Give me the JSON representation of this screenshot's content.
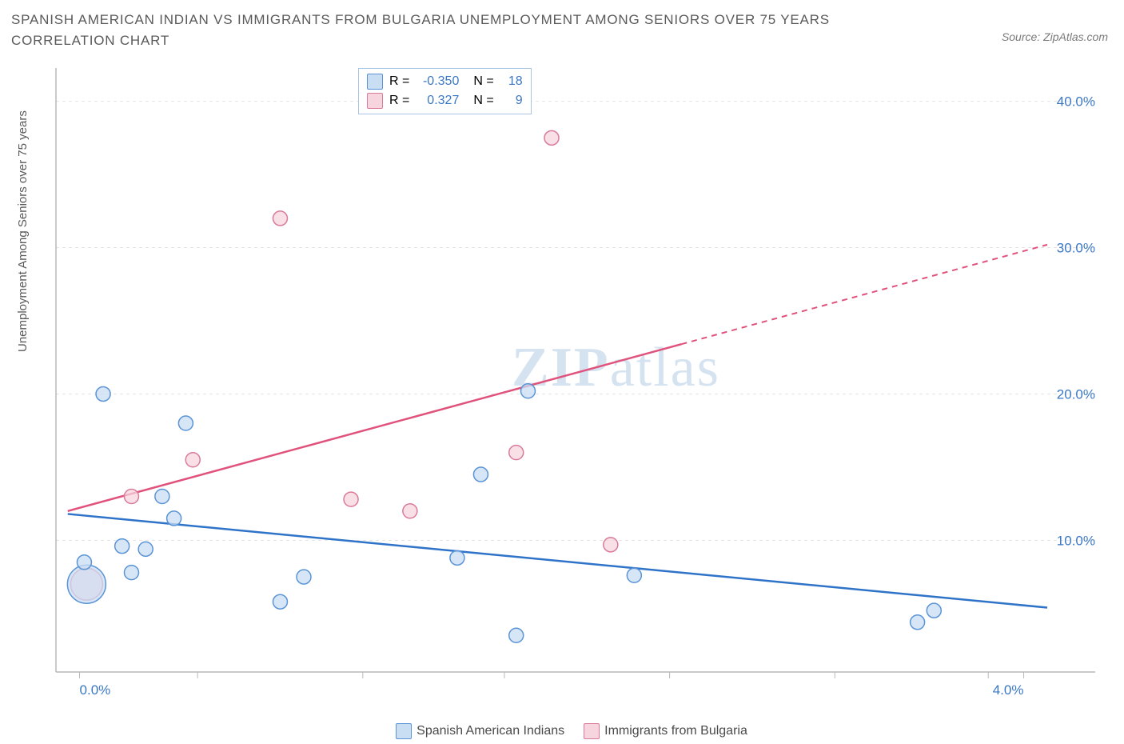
{
  "title": "SPANISH AMERICAN INDIAN VS IMMIGRANTS FROM BULGARIA UNEMPLOYMENT AMONG SENIORS OVER 75 YEARS CORRELATION CHART",
  "source": "Source: ZipAtlas.com",
  "watermark": "ZIPatlas",
  "ylabel": "Unemployment Among Seniors over 75 years",
  "chart": {
    "type": "scatter",
    "xlim": [
      -0.1,
      4.1
    ],
    "ylim": [
      1,
      42
    ],
    "x_ticks": [
      0.0,
      4.0
    ],
    "x_tick_labels": [
      "0.0%",
      "4.0%"
    ],
    "x_minor_ticks": [
      0.5,
      1.2,
      1.8,
      2.5,
      3.2,
      3.85
    ],
    "y_ticks": [
      10.0,
      20.0,
      30.0,
      40.0
    ],
    "y_tick_labels": [
      "10.0%",
      "20.0%",
      "30.0%",
      "40.0%"
    ],
    "background_color": "#ffffff",
    "grid_color": "#e4e4e4",
    "axis_color": "#b8b8b8",
    "tick_label_color": "#3b78c4",
    "series": [
      {
        "name": "Spanish American Indians",
        "marker_fill": "#c9ddf3",
        "marker_stroke": "#5a94d6",
        "line_color": "#2f73c9",
        "line_dash": "none",
        "points": [
          {
            "x": 0.03,
            "y": 7.0,
            "r": 24
          },
          {
            "x": 0.02,
            "y": 8.5,
            "r": 9
          },
          {
            "x": 0.1,
            "y": 20.0,
            "r": 9
          },
          {
            "x": 0.18,
            "y": 9.6,
            "r": 9
          },
          {
            "x": 0.22,
            "y": 7.8,
            "r": 9
          },
          {
            "x": 0.28,
            "y": 9.4,
            "r": 9
          },
          {
            "x": 0.35,
            "y": 13.0,
            "r": 9
          },
          {
            "x": 0.4,
            "y": 11.5,
            "r": 9
          },
          {
            "x": 0.45,
            "y": 18.0,
            "r": 9
          },
          {
            "x": 0.85,
            "y": 5.8,
            "r": 9
          },
          {
            "x": 0.95,
            "y": 7.5,
            "r": 9
          },
          {
            "x": 1.6,
            "y": 8.8,
            "r": 9
          },
          {
            "x": 1.7,
            "y": 14.5,
            "r": 9
          },
          {
            "x": 1.85,
            "y": 3.5,
            "r": 9
          },
          {
            "x": 1.9,
            "y": 20.2,
            "r": 9
          },
          {
            "x": 2.35,
            "y": 7.6,
            "r": 9
          },
          {
            "x": 3.55,
            "y": 4.4,
            "r": 9
          },
          {
            "x": 3.62,
            "y": 5.2,
            "r": 9
          }
        ],
        "trend": {
          "x1": -0.05,
          "y1": 11.8,
          "x2": 4.1,
          "y2": 5.4
        }
      },
      {
        "name": "Immigrants from Bulgaria",
        "marker_fill": "#f7d5df",
        "marker_stroke": "#d97a9a",
        "line_color": "#e0527c",
        "line_dash_after_x": 2.55,
        "points": [
          {
            "x": 0.03,
            "y": 7.0,
            "r": 20
          },
          {
            "x": 0.22,
            "y": 13.0,
            "r": 9
          },
          {
            "x": 0.48,
            "y": 15.5,
            "r": 9
          },
          {
            "x": 0.85,
            "y": 32.0,
            "r": 9
          },
          {
            "x": 1.15,
            "y": 12.8,
            "r": 9
          },
          {
            "x": 1.4,
            "y": 12.0,
            "r": 9
          },
          {
            "x": 1.85,
            "y": 16.0,
            "r": 9
          },
          {
            "x": 2.0,
            "y": 37.5,
            "r": 9
          },
          {
            "x": 2.25,
            "y": 9.7,
            "r": 9
          }
        ],
        "trend": {
          "x1": -0.05,
          "y1": 12.0,
          "x2": 4.1,
          "y2": 30.2
        }
      }
    ]
  },
  "stats_box": {
    "rows": [
      {
        "swatch_fill": "#c9ddf3",
        "swatch_stroke": "#5a94d6",
        "r_label": "R =",
        "r_val": "-0.350",
        "n_label": "N =",
        "n_val": "18"
      },
      {
        "swatch_fill": "#f7d5df",
        "swatch_stroke": "#d97a9a",
        "r_label": "R =",
        "r_val": "0.327",
        "n_label": "N =",
        "n_val": "9"
      }
    ]
  },
  "bottom_legend": {
    "items": [
      {
        "fill": "#c9ddf3",
        "stroke": "#5a94d6",
        "label": "Spanish American Indians"
      },
      {
        "fill": "#f7d5df",
        "stroke": "#d97a9a",
        "label": "Immigrants from Bulgaria"
      }
    ]
  }
}
